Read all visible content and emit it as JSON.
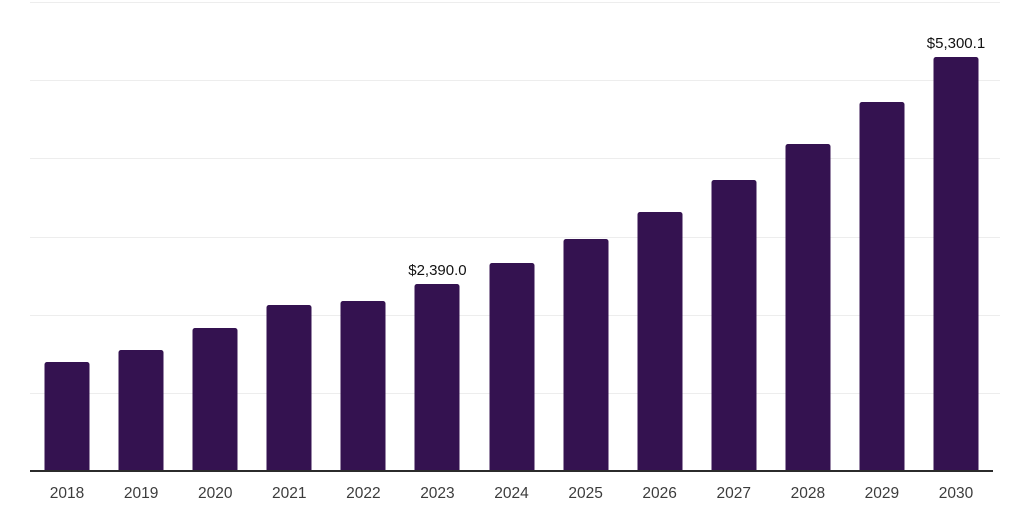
{
  "chart_data": {
    "type": "bar",
    "title": "",
    "xlabel": "",
    "ylabel": "",
    "categories": [
      "2018",
      "2019",
      "2020",
      "2021",
      "2022",
      "2023",
      "2024",
      "2025",
      "2026",
      "2027",
      "2028",
      "2029",
      "2030"
    ],
    "values": [
      1400,
      1550,
      1830,
      2120,
      2180,
      2390,
      2660,
      2970,
      3320,
      3720,
      4180,
      4720,
      5300.1
    ],
    "value_labels": [
      "",
      "",
      "",
      "",
      "",
      "$2,390.0",
      "",
      "",
      "",
      "",
      "",
      "",
      "$5,300.1"
    ],
    "ylim": [
      0,
      6000
    ],
    "gridline_interval": 1000,
    "grid": true,
    "legend": false,
    "y_axis_labels_visible": false,
    "colors": {
      "bar": "#341250",
      "gridline": "#ededed",
      "axis": "#2b2b2b",
      "tick_label": "#3c3c3c",
      "value_label": "#121212",
      "background": "#ffffff"
    }
  }
}
